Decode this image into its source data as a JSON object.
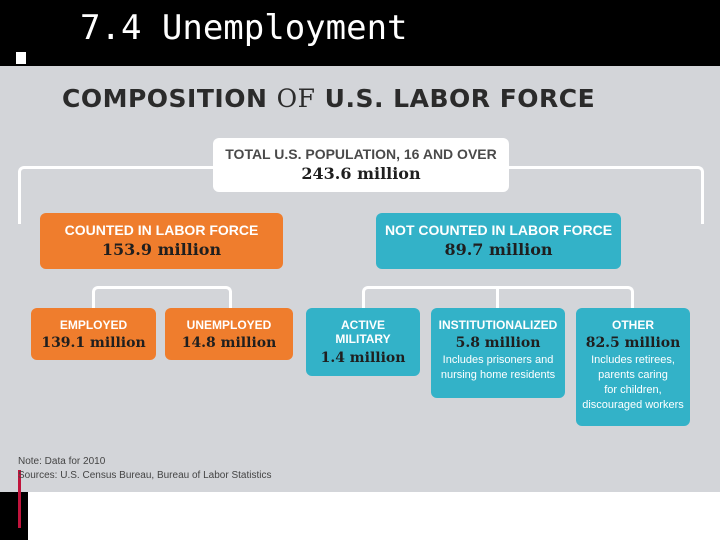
{
  "slide": {
    "title": "7.4 Unemployment"
  },
  "figure": {
    "heading_left": "COMPOSITION",
    "heading_of": "OF",
    "heading_right": "U.S. LABOR FORCE",
    "total": {
      "label": "TOTAL U.S. POPULATION, 16 AND OVER",
      "value": "243.6 million"
    },
    "counted": {
      "label": "COUNTED IN LABOR FORCE",
      "value": "153.9 million"
    },
    "not_counted": {
      "label": "NOT COUNTED IN LABOR FORCE",
      "value": "89.7 million"
    },
    "employed": {
      "label": "EMPLOYED",
      "value": "139.1 million"
    },
    "unemployed": {
      "label": "UNEMPLOYED",
      "value": "14.8 million"
    },
    "military": {
      "label_1": "ACTIVE",
      "label_2": "MILITARY",
      "value": "1.4 million"
    },
    "institutionalized": {
      "label": "INSTITUTIONALIZED",
      "value": "5.8 million",
      "note_1": "Includes prisoners and",
      "note_2": "nursing home residents"
    },
    "other": {
      "label": "OTHER",
      "value": "82.5 million",
      "note_1": "Includes retirees,",
      "note_2": "parents caring",
      "note_3": "for children,",
      "note_4": "discouraged workers"
    },
    "note": "Note: Data for 2010",
    "sources": "Sources: U.S. Census Bureau, Bureau of Labor Statistics"
  },
  "colors": {
    "orange": "#ef7d2d",
    "blue": "#33b2c8",
    "panel": "#d3d5d9",
    "background": "#000000"
  }
}
